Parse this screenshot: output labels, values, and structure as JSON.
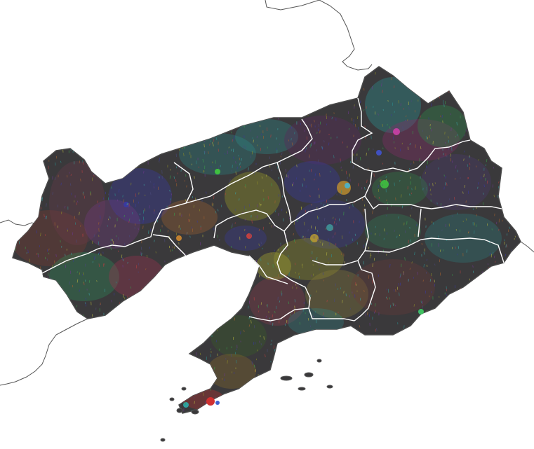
{
  "map": {
    "background_color": "#ffffff",
    "landmass_color": "#3a393b",
    "boundary_color": "#ffffff",
    "outline_color": "#555555",
    "region_count": 14,
    "density_palette": [
      "#2e8b8b",
      "#3ca0a0",
      "#8a8a2a",
      "#b0b040",
      "#6a3a8a",
      "#3a3a9a",
      "#b04040",
      "#3a9a4a",
      "#a06030",
      "#4a4a7a"
    ],
    "legend": null,
    "labels": []
  }
}
